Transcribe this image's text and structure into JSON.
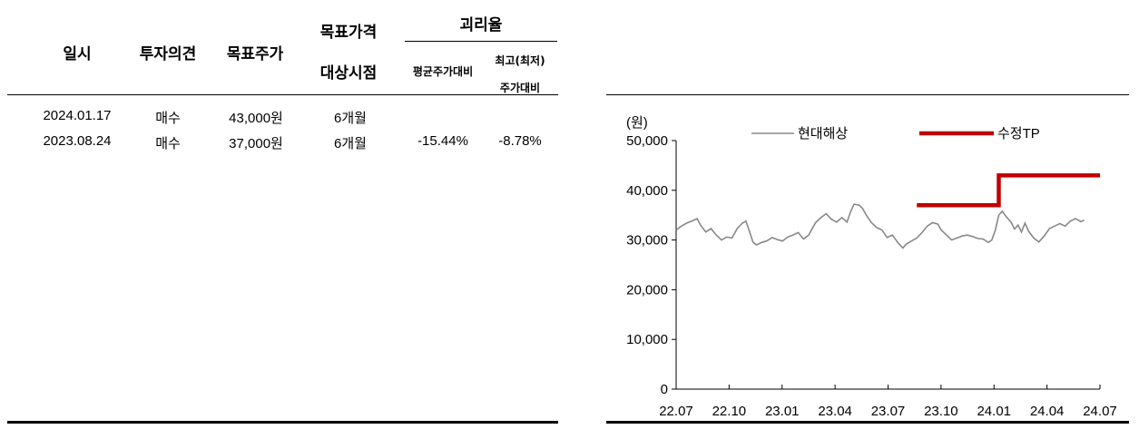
{
  "table": {
    "headers": {
      "date": "일시",
      "opinion": "투자의견",
      "target_price": "목표주가",
      "target_period_line1": "목표가격",
      "target_period_line2": "대상시점",
      "divergence": "괴리율",
      "avg_vs": "평균주가대비",
      "hilo_vs_line1": "최고(최저)",
      "hilo_vs_line2": "주가대비"
    },
    "rows": [
      {
        "date": "2024.01.17",
        "opinion": "매수",
        "target": "43,000원",
        "period": "6개월",
        "avg": "",
        "hilo": ""
      },
      {
        "date": "2023.08.24",
        "opinion": "매수",
        "target": "37,000원",
        "period": "6개월",
        "avg": "-15.44%",
        "hilo": "-8.78%"
      }
    ]
  },
  "chart_data": {
    "type": "line",
    "unit_label": "(원)",
    "y_ticks": [
      "50,000",
      "40,000",
      "30,000",
      "20,000",
      "10,000",
      "0"
    ],
    "ylim": [
      0,
      50000
    ],
    "x_ticks": [
      "22.07",
      "22.10",
      "23.01",
      "23.04",
      "23.07",
      "23.10",
      "24.01",
      "24.04",
      "24.07"
    ],
    "xlim": [
      0,
      24.3
    ],
    "legend": [
      {
        "name": "현대해상",
        "color": "#888888"
      },
      {
        "name": "수정TP",
        "color": "#c00000"
      }
    ],
    "series": [
      {
        "name": "현대해상",
        "color": "#888888",
        "points": [
          [
            0.0,
            32000
          ],
          [
            0.3,
            32800
          ],
          [
            0.6,
            33400
          ],
          [
            0.9,
            33800
          ],
          [
            1.2,
            34300
          ],
          [
            1.4,
            33000
          ],
          [
            1.7,
            31600
          ],
          [
            2.0,
            32300
          ],
          [
            2.3,
            31000
          ],
          [
            2.6,
            30000
          ],
          [
            2.9,
            30600
          ],
          [
            3.2,
            30400
          ],
          [
            3.5,
            32300
          ],
          [
            3.8,
            33400
          ],
          [
            4.0,
            33800
          ],
          [
            4.2,
            31800
          ],
          [
            4.4,
            29600
          ],
          [
            4.6,
            29000
          ],
          [
            4.9,
            29500
          ],
          [
            5.2,
            29800
          ],
          [
            5.5,
            30500
          ],
          [
            5.8,
            30100
          ],
          [
            6.1,
            29800
          ],
          [
            6.4,
            30600
          ],
          [
            6.7,
            31000
          ],
          [
            7.0,
            31500
          ],
          [
            7.3,
            30200
          ],
          [
            7.6,
            31000
          ],
          [
            7.8,
            32300
          ],
          [
            8.0,
            33500
          ],
          [
            8.3,
            34500
          ],
          [
            8.6,
            35300
          ],
          [
            8.9,
            34200
          ],
          [
            9.2,
            33600
          ],
          [
            9.5,
            34500
          ],
          [
            9.8,
            33600
          ],
          [
            10.0,
            35700
          ],
          [
            10.2,
            37200
          ],
          [
            10.5,
            37000
          ],
          [
            10.7,
            36300
          ],
          [
            10.9,
            35000
          ],
          [
            11.2,
            33500
          ],
          [
            11.5,
            32500
          ],
          [
            11.8,
            32000
          ],
          [
            12.1,
            30500
          ],
          [
            12.4,
            31000
          ],
          [
            12.7,
            29500
          ],
          [
            13.0,
            28400
          ],
          [
            13.2,
            29200
          ],
          [
            13.5,
            29800
          ],
          [
            13.8,
            30400
          ],
          [
            14.1,
            31500
          ],
          [
            14.4,
            32800
          ],
          [
            14.7,
            33500
          ],
          [
            15.0,
            33200
          ],
          [
            15.2,
            32000
          ],
          [
            15.5,
            31000
          ],
          [
            15.8,
            30000
          ],
          [
            16.1,
            30400
          ],
          [
            16.4,
            30800
          ],
          [
            16.7,
            31000
          ],
          [
            17.0,
            30700
          ],
          [
            17.3,
            30300
          ],
          [
            17.6,
            30200
          ],
          [
            17.9,
            29500
          ],
          [
            18.1,
            30000
          ],
          [
            18.3,
            32000
          ],
          [
            18.5,
            35000
          ],
          [
            18.7,
            35800
          ],
          [
            18.9,
            34800
          ],
          [
            19.2,
            33600
          ],
          [
            19.4,
            32200
          ],
          [
            19.6,
            33000
          ],
          [
            19.8,
            31600
          ],
          [
            20.0,
            33400
          ],
          [
            20.2,
            31800
          ],
          [
            20.5,
            30400
          ],
          [
            20.8,
            29600
          ],
          [
            21.1,
            30800
          ],
          [
            21.4,
            32300
          ],
          [
            21.7,
            32800
          ],
          [
            22.0,
            33300
          ],
          [
            22.3,
            32800
          ],
          [
            22.6,
            33800
          ],
          [
            22.9,
            34300
          ],
          [
            23.2,
            33700
          ],
          [
            23.4,
            34000
          ]
        ]
      },
      {
        "name": "수정TP",
        "color": "#c00000",
        "points": [
          [
            13.8,
            37000
          ],
          [
            18.5,
            37000
          ],
          [
            18.5,
            43000
          ],
          [
            24.3,
            43000
          ]
        ]
      }
    ]
  }
}
